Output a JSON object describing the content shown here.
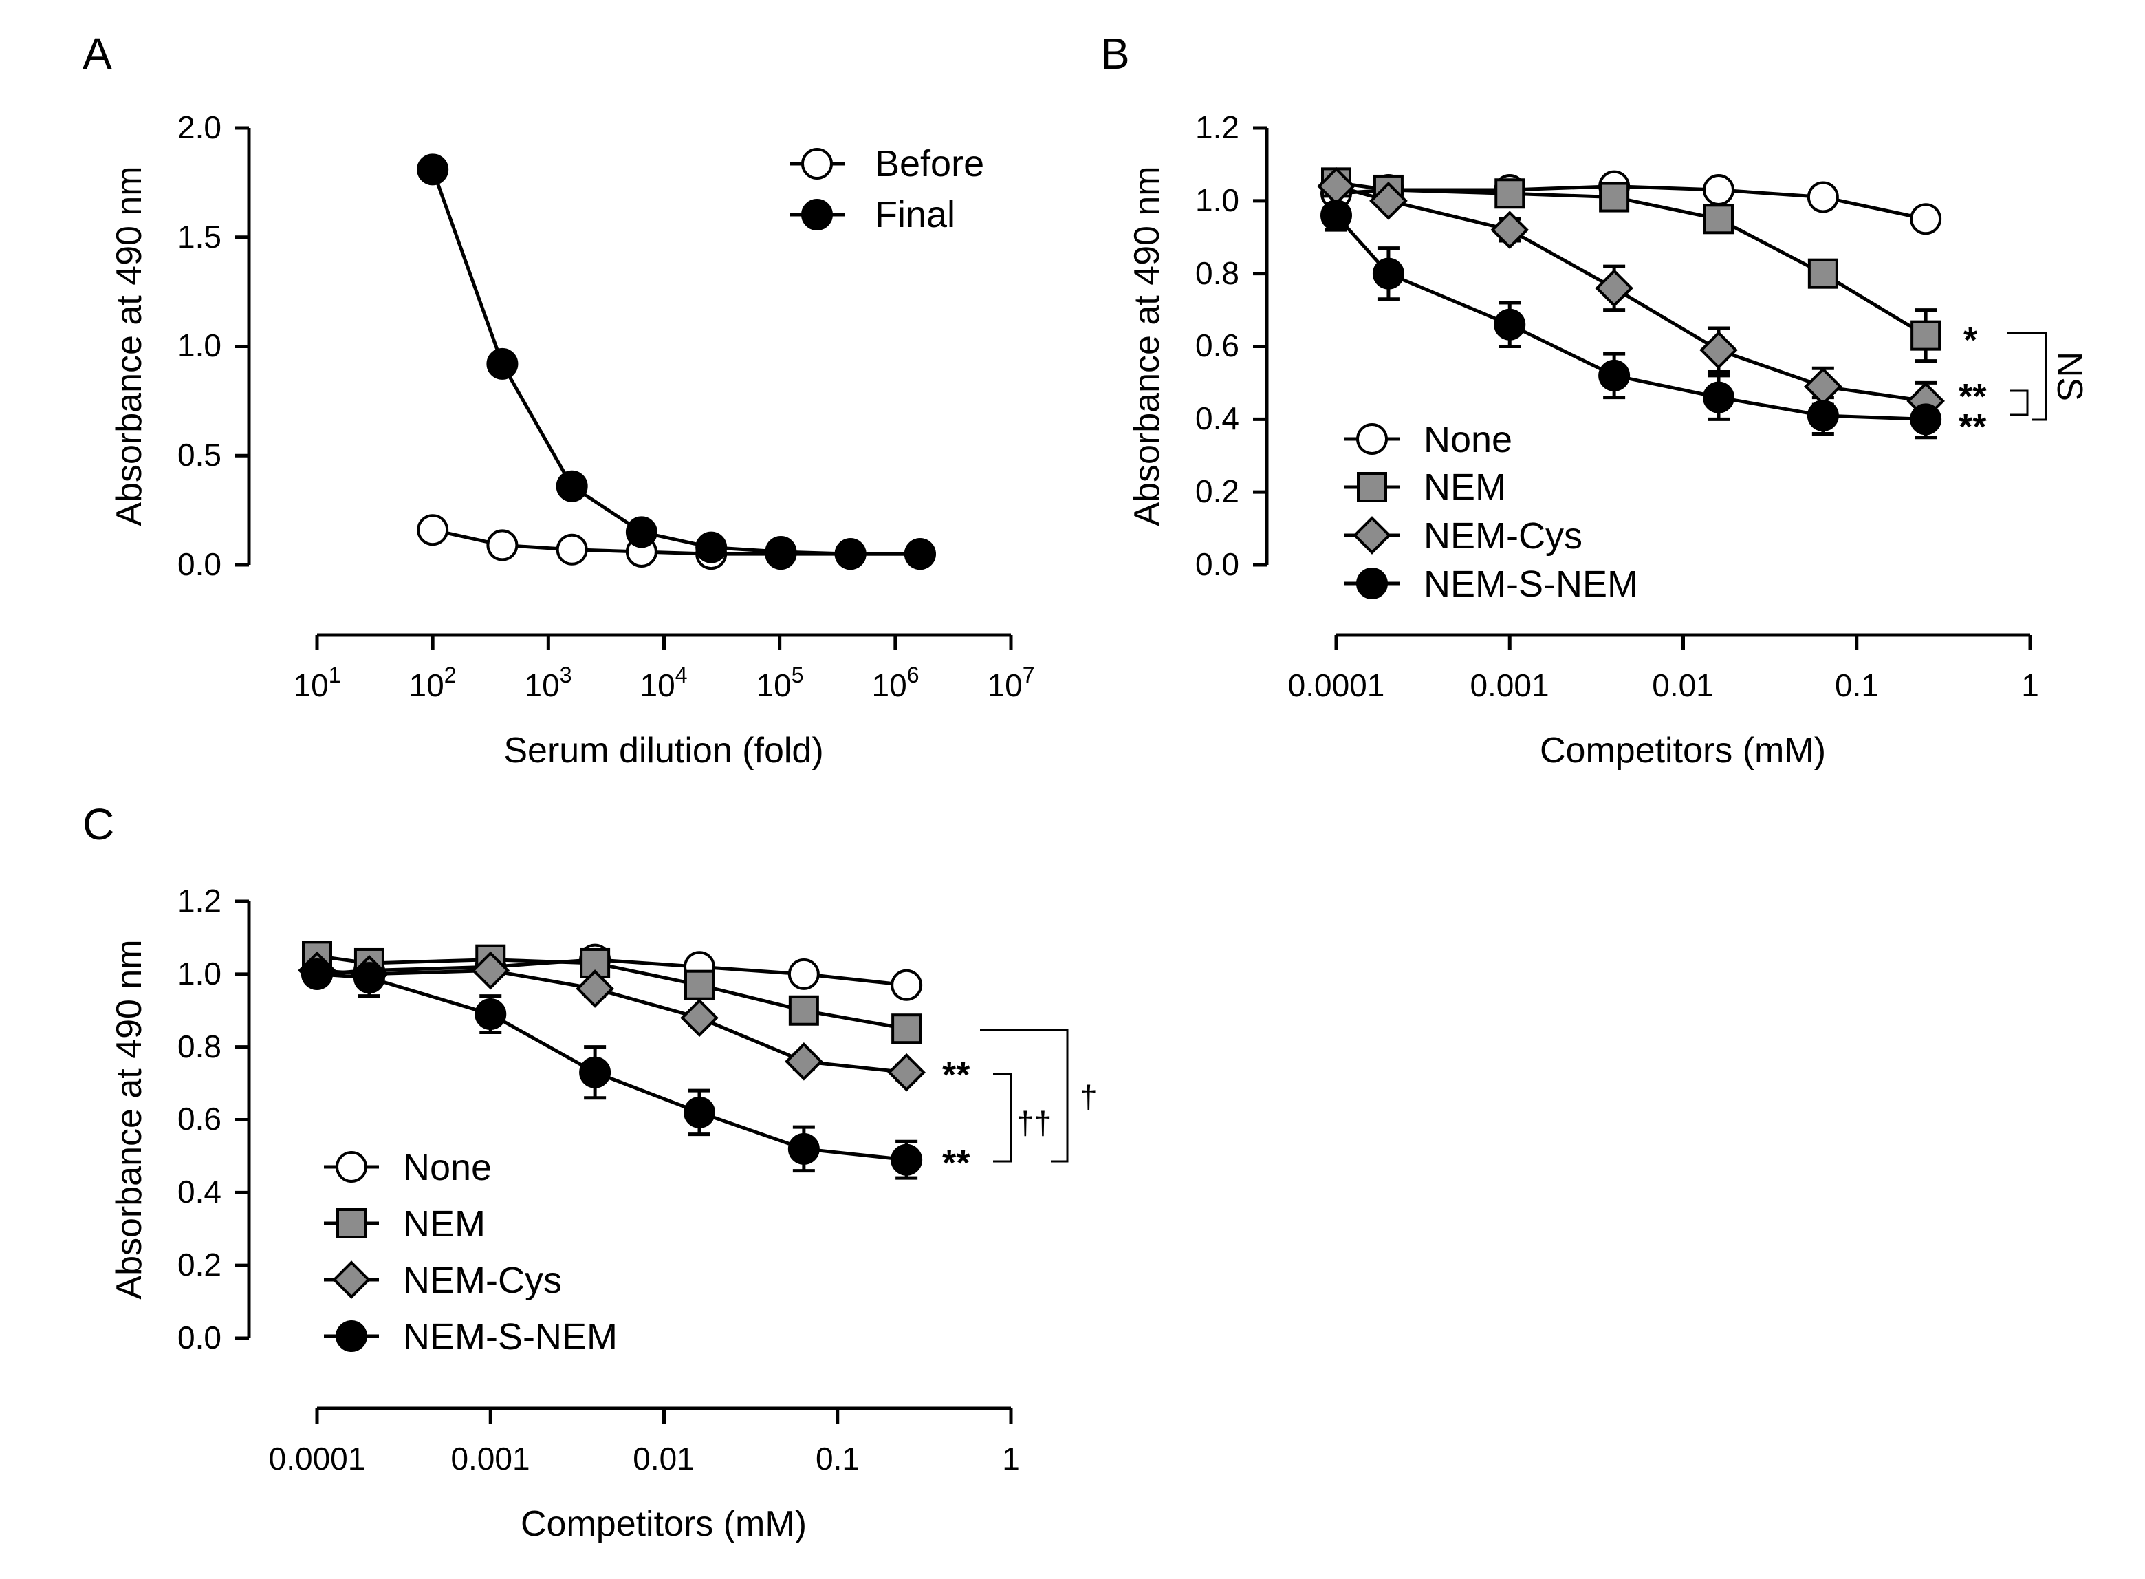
{
  "chart_data": [
    {
      "panel": "A",
      "type": "line",
      "xscale": "log",
      "xlabel": "Serum dilution (fold)",
      "ylabel": "Absorbance at 490 nm",
      "xlim": [
        10,
        10000000
      ],
      "ylim": [
        0,
        2.0
      ],
      "yticks": [
        0.0,
        0.5,
        1.0,
        1.5,
        2.0
      ],
      "ytick_labels": [
        "0.0",
        "0.5",
        "1.0",
        "1.5",
        "2.0"
      ],
      "xticks": [
        10,
        100,
        1000,
        10000,
        100000,
        1000000,
        10000000
      ],
      "xtick_labels": [
        {
          "base": "10",
          "exp": "1"
        },
        {
          "base": "10",
          "exp": "2"
        },
        {
          "base": "10",
          "exp": "3"
        },
        {
          "base": "10",
          "exp": "4"
        },
        {
          "base": "10",
          "exp": "5"
        },
        {
          "base": "10",
          "exp": "6"
        },
        {
          "base": "10",
          "exp": "7"
        }
      ],
      "grid": false,
      "legend_position": "top-right",
      "series": [
        {
          "name": "Before",
          "marker": "circle",
          "fill": "#ffffff",
          "x": [
            100,
            400,
            1600,
            6400,
            25600,
            102400,
            409600,
            1638400
          ],
          "y": [
            0.16,
            0.09,
            0.07,
            0.06,
            0.05,
            0.05,
            0.05,
            0.05
          ],
          "err": [
            0,
            0,
            0,
            0,
            0,
            0,
            0,
            0
          ]
        },
        {
          "name": "Final",
          "marker": "circle",
          "fill": "#000000",
          "x": [
            100,
            400,
            1600,
            6400,
            25600,
            102400,
            409600,
            1638400
          ],
          "y": [
            1.81,
            0.92,
            0.36,
            0.15,
            0.08,
            0.06,
            0.05,
            0.05
          ],
          "err": [
            0,
            0,
            0,
            0,
            0,
            0,
            0,
            0
          ]
        }
      ],
      "annotations": []
    },
    {
      "panel": "B",
      "type": "line",
      "xscale": "log",
      "xlabel": "Competitors (mM)",
      "ylabel": "Absorbance at 490 nm",
      "xlim": [
        0.0001,
        1
      ],
      "ylim": [
        0,
        1.2
      ],
      "yticks": [
        0.0,
        0.2,
        0.4,
        0.6,
        0.8,
        1.0,
        1.2
      ],
      "ytick_labels": [
        "0.0",
        "0.2",
        "0.4",
        "0.6",
        "0.8",
        "1.0",
        "1.2"
      ],
      "xticks": [
        0.0001,
        0.001,
        0.01,
        0.1,
        1
      ],
      "xtick_labels": [
        "0.0001",
        "0.001",
        "0.01",
        "0.1",
        "1"
      ],
      "grid": false,
      "legend_position": "bottom-left",
      "series": [
        {
          "name": "None",
          "marker": "circle",
          "fill": "#ffffff",
          "x": [
            0.0001,
            0.0002,
            0.001,
            0.004,
            0.016,
            0.064,
            0.25
          ],
          "y": [
            1.02,
            1.03,
            1.03,
            1.04,
            1.03,
            1.01,
            0.95
          ],
          "err": [
            0,
            0,
            0,
            0,
            0,
            0,
            0
          ]
        },
        {
          "name": "NEM",
          "marker": "square",
          "fill": "#8c8c8c",
          "x": [
            0.0001,
            0.0002,
            0.001,
            0.004,
            0.016,
            0.064,
            0.25
          ],
          "y": [
            1.05,
            1.03,
            1.02,
            1.01,
            0.95,
            0.8,
            0.63
          ],
          "err": [
            0,
            0,
            0,
            0,
            0.02,
            0.03,
            0.07
          ]
        },
        {
          "name": "NEM-Cys",
          "marker": "diamond",
          "fill": "#8c8c8c",
          "x": [
            0.0001,
            0.0002,
            0.001,
            0.004,
            0.016,
            0.064,
            0.25
          ],
          "y": [
            1.04,
            1.0,
            0.92,
            0.76,
            0.59,
            0.49,
            0.45
          ],
          "err": [
            0,
            0,
            0.03,
            0.06,
            0.06,
            0.05,
            0.05
          ]
        },
        {
          "name": "NEM-S-NEM",
          "marker": "circle",
          "fill": "#000000",
          "x": [
            0.0001,
            0.0002,
            0.001,
            0.004,
            0.016,
            0.064,
            0.25
          ],
          "y": [
            0.96,
            0.8,
            0.66,
            0.52,
            0.46,
            0.41,
            0.4
          ],
          "err": [
            0.04,
            0.07,
            0.06,
            0.06,
            0.06,
            0.05,
            0.05
          ]
        }
      ],
      "annotations": [
        "*",
        "**",
        "**",
        "NS"
      ]
    },
    {
      "panel": "C",
      "type": "line",
      "xscale": "log",
      "xlabel": "Competitors (mM)",
      "ylabel": "Absorbance at 490 nm",
      "xlim": [
        0.0001,
        1
      ],
      "ylim": [
        0,
        1.2
      ],
      "yticks": [
        0.0,
        0.2,
        0.4,
        0.6,
        0.8,
        1.0,
        1.2
      ],
      "ytick_labels": [
        "0.0",
        "0.2",
        "0.4",
        "0.6",
        "0.8",
        "1.0",
        "1.2"
      ],
      "xticks": [
        0.0001,
        0.001,
        0.01,
        0.1,
        1
      ],
      "xtick_labels": [
        "0.0001",
        "0.001",
        "0.01",
        "0.1",
        "1"
      ],
      "grid": false,
      "legend_position": "bottom-left",
      "series": [
        {
          "name": "None",
          "marker": "circle",
          "fill": "#ffffff",
          "x": [
            0.0001,
            0.0002,
            0.001,
            0.004,
            0.016,
            0.064,
            0.25
          ],
          "y": [
            1.0,
            1.01,
            1.02,
            1.04,
            1.02,
            1.0,
            0.97
          ],
          "err": [
            0,
            0,
            0,
            0,
            0,
            0,
            0
          ]
        },
        {
          "name": "NEM",
          "marker": "square",
          "fill": "#8c8c8c",
          "x": [
            0.0001,
            0.0002,
            0.001,
            0.004,
            0.016,
            0.064,
            0.25
          ],
          "y": [
            1.05,
            1.03,
            1.04,
            1.03,
            0.97,
            0.9,
            0.85
          ],
          "err": [
            0,
            0,
            0,
            0,
            0.02,
            0.02,
            0.02
          ]
        },
        {
          "name": "NEM-Cys",
          "marker": "diamond",
          "fill": "#8c8c8c",
          "x": [
            0.0001,
            0.0002,
            0.001,
            0.004,
            0.016,
            0.064,
            0.25
          ],
          "y": [
            1.01,
            1.0,
            1.01,
            0.96,
            0.88,
            0.76,
            0.73
          ],
          "err": [
            0,
            0,
            0,
            0.02,
            0.02,
            0.02,
            0.02
          ]
        },
        {
          "name": "NEM-S-NEM",
          "marker": "circle",
          "fill": "#000000",
          "x": [
            0.0001,
            0.0002,
            0.001,
            0.004,
            0.016,
            0.064,
            0.25
          ],
          "y": [
            1.0,
            0.99,
            0.89,
            0.73,
            0.62,
            0.52,
            0.49
          ],
          "err": [
            0,
            0.05,
            0.05,
            0.07,
            0.06,
            0.06,
            0.05
          ]
        }
      ],
      "annotations": [
        "**",
        "**",
        "††",
        "†"
      ]
    }
  ]
}
